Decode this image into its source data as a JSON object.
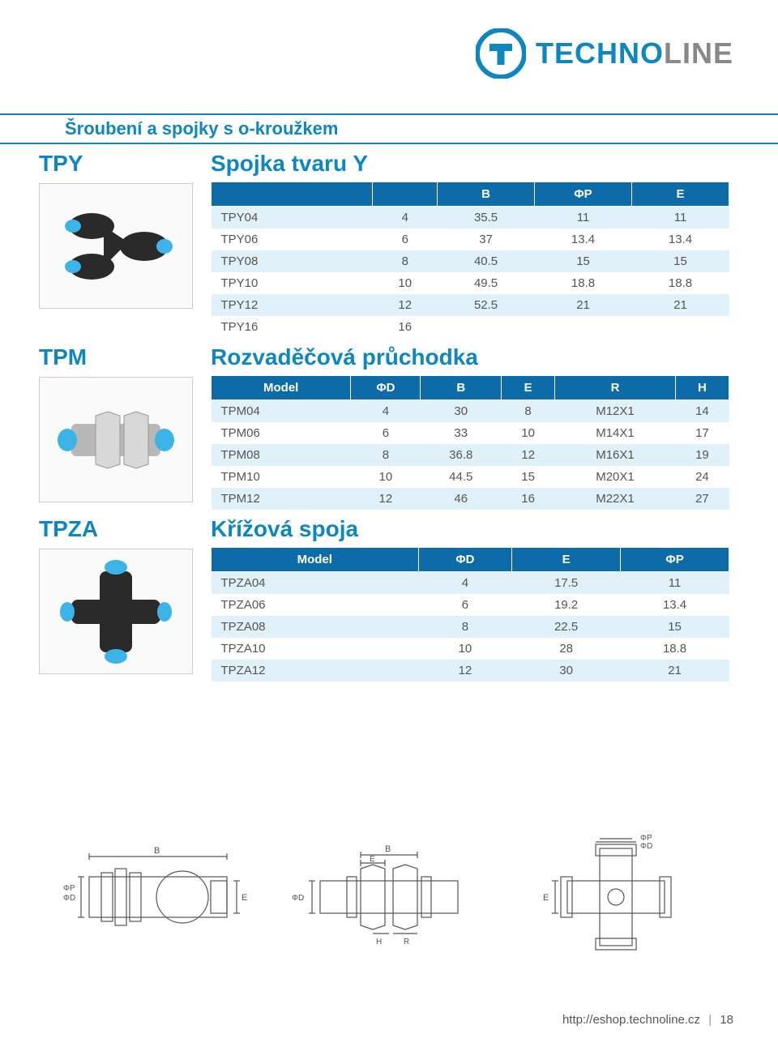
{
  "brand": {
    "part1": "TECHNO",
    "part2": "LINE",
    "accent": "#0d87bd",
    "grey": "#888888"
  },
  "header": "Šroubení a spojky s o-kroužkem",
  "sections": [
    {
      "code": "TPY",
      "title": "Spojka tvaru Y",
      "columns": [
        "",
        "",
        "B",
        "ΦP",
        "E"
      ],
      "rows": [
        [
          "TPY04",
          "4",
          "35.5",
          "11",
          "11"
        ],
        [
          "TPY06",
          "6",
          "37",
          "13.4",
          "13.4"
        ],
        [
          "TPY08",
          "8",
          "40.5",
          "15",
          "15"
        ],
        [
          "TPY10",
          "10",
          "49.5",
          "18.8",
          "18.8"
        ],
        [
          "TPY12",
          "12",
          "52.5",
          "21",
          "21"
        ],
        [
          "TPY16",
          "16",
          "",
          "",
          ""
        ]
      ]
    },
    {
      "code": "TPM",
      "title": "Rozvaděčová průchodka",
      "columns": [
        "Model",
        "ΦD",
        "B",
        "E",
        "R",
        "H"
      ],
      "rows": [
        [
          "TPM04",
          "4",
          "30",
          "8",
          "M12X1",
          "14"
        ],
        [
          "TPM06",
          "6",
          "33",
          "10",
          "M14X1",
          "17"
        ],
        [
          "TPM08",
          "8",
          "36.8",
          "12",
          "M16X1",
          "19"
        ],
        [
          "TPM10",
          "10",
          "44.5",
          "15",
          "M20X1",
          "24"
        ],
        [
          "TPM12",
          "12",
          "46",
          "16",
          "M22X1",
          "27"
        ]
      ]
    },
    {
      "code": "TPZA",
      "title": "Křížová spoja",
      "columns": [
        "Model",
        "ΦD",
        "E",
        "ΦP"
      ],
      "rows": [
        [
          "TPZA04",
          "4",
          "17.5",
          "11"
        ],
        [
          "TPZA06",
          "6",
          "19.2",
          "13.4"
        ],
        [
          "TPZA08",
          "8",
          "22.5",
          "15"
        ],
        [
          "TPZA10",
          "10",
          "28",
          "18.8"
        ],
        [
          "TPZA12",
          "12",
          "30",
          "21"
        ]
      ]
    }
  ],
  "diagram_labels": {
    "d1": [
      "B",
      "E",
      "ΦD",
      "ΦP"
    ],
    "d2": [
      "B",
      "E",
      "ΦD",
      "H",
      "R"
    ],
    "d3": [
      "ΦP",
      "ΦD",
      "E"
    ]
  },
  "footer": {
    "url": "http://eshop.technoline.cz",
    "page": "18"
  },
  "colors": {
    "th_bg": "#0d6ca8",
    "row_odd": "#e0f1f9",
    "row_even": "#ffffff",
    "accent": "#0d87bd"
  }
}
